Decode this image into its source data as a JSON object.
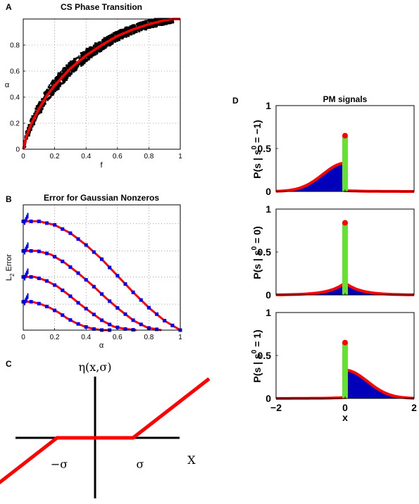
{
  "panel_labels": {
    "a": "A",
    "b": "B",
    "c": "C",
    "d": "D"
  },
  "colors": {
    "curve": "#ff0000",
    "scatter": "#000000",
    "blue": "#0000ff",
    "green": "#66e033",
    "pmfill": "#0000bb"
  },
  "chart_data": [
    {
      "id": "A",
      "type": "scatter",
      "title": "CS Phase Transition",
      "xlabel": "f",
      "ylabel": "α",
      "xlim": [
        0,
        1
      ],
      "ylim": [
        0,
        1
      ],
      "xticks": [
        "0",
        "0.2",
        "0.4",
        "0.6",
        "0.8",
        "1"
      ],
      "yticks": [
        "0",
        "0.2",
        "0.4",
        "0.6",
        "0.8"
      ],
      "grid": true,
      "series": [
        {
          "kind": "curve",
          "x": [
            0.0,
            0.02,
            0.05,
            0.1,
            0.15,
            0.2,
            0.3,
            0.4,
            0.5,
            0.6,
            0.7,
            0.8,
            0.9,
            0.95,
            1.0
          ],
          "y": [
            0.0,
            0.1,
            0.19,
            0.31,
            0.41,
            0.49,
            0.62,
            0.72,
            0.8,
            0.87,
            0.92,
            0.96,
            0.99,
            1.0,
            1.0
          ]
        },
        {
          "kind": "band",
          "spread": 0.06
        }
      ]
    },
    {
      "id": "B",
      "type": "line",
      "title": "Error for Gaussian Nonzeros",
      "xlabel": "α",
      "ylabel": "L2 Error",
      "ylabel_main": "L",
      "ylabel_sub": "2",
      "ylabel_rest": " Error",
      "xlim": [
        0,
        1
      ],
      "xticks": [
        "0",
        "0.2",
        "0.4",
        "0.6",
        "0.8",
        "1"
      ],
      "grid": true,
      "series": [
        {
          "end": 1.0,
          "y": [
            0.92,
            0.92,
            0.89,
            0.82,
            0.72,
            0.6,
            0.46,
            0.32,
            0.19,
            0.08,
            0.0
          ]
        },
        {
          "end": 0.88,
          "y": [
            0.67,
            0.67,
            0.64,
            0.57,
            0.48,
            0.38,
            0.27,
            0.17,
            0.08,
            0.02,
            0.0
          ]
        },
        {
          "end": 0.72,
          "y": [
            0.45,
            0.45,
            0.42,
            0.37,
            0.3,
            0.22,
            0.15,
            0.08,
            0.03,
            0.01,
            0.0
          ]
        },
        {
          "end": 0.56,
          "y": [
            0.24,
            0.24,
            0.22,
            0.19,
            0.15,
            0.1,
            0.06,
            0.03,
            0.01,
            0.0,
            0.0
          ]
        }
      ]
    },
    {
      "id": "C",
      "type": "line",
      "title": "η(x,σ)",
      "xlabel": "X",
      "left_threshold": "−σ",
      "right_threshold": "σ",
      "x": [
        -3.0,
        -1.0,
        1.0,
        3.0
      ],
      "y": [
        -2.0,
        0.0,
        0.0,
        2.0
      ]
    },
    {
      "id": "D",
      "type": "area",
      "title": "PM signals",
      "xlabel": "x",
      "xlim": [
        -2,
        2
      ],
      "xticks": [
        "−2",
        "0",
        "2"
      ],
      "yticks": [
        "0",
        "0.5",
        "1"
      ],
      "panels": [
        {
          "ylabel": "P(s | s⁰ = −1)",
          "ylabel_pre": "P(s | s",
          "ylabel_sup": "0",
          "ylabel_post": " = −1)",
          "spike": 0.65,
          "side": "left",
          "peak": 0.33
        },
        {
          "ylabel": "P(s | s⁰ = 0)",
          "ylabel_pre": "P(s | s",
          "ylabel_sup": "0",
          "ylabel_post": " = 0)",
          "spike": 0.84,
          "side": "both",
          "peak": 0.14
        },
        {
          "ylabel": "P(s | s⁰ = 1)",
          "ylabel_pre": "P(s | s",
          "ylabel_sup": "0",
          "ylabel_post": " = 1)",
          "spike": 0.65,
          "side": "right",
          "peak": 0.33
        }
      ]
    }
  ]
}
